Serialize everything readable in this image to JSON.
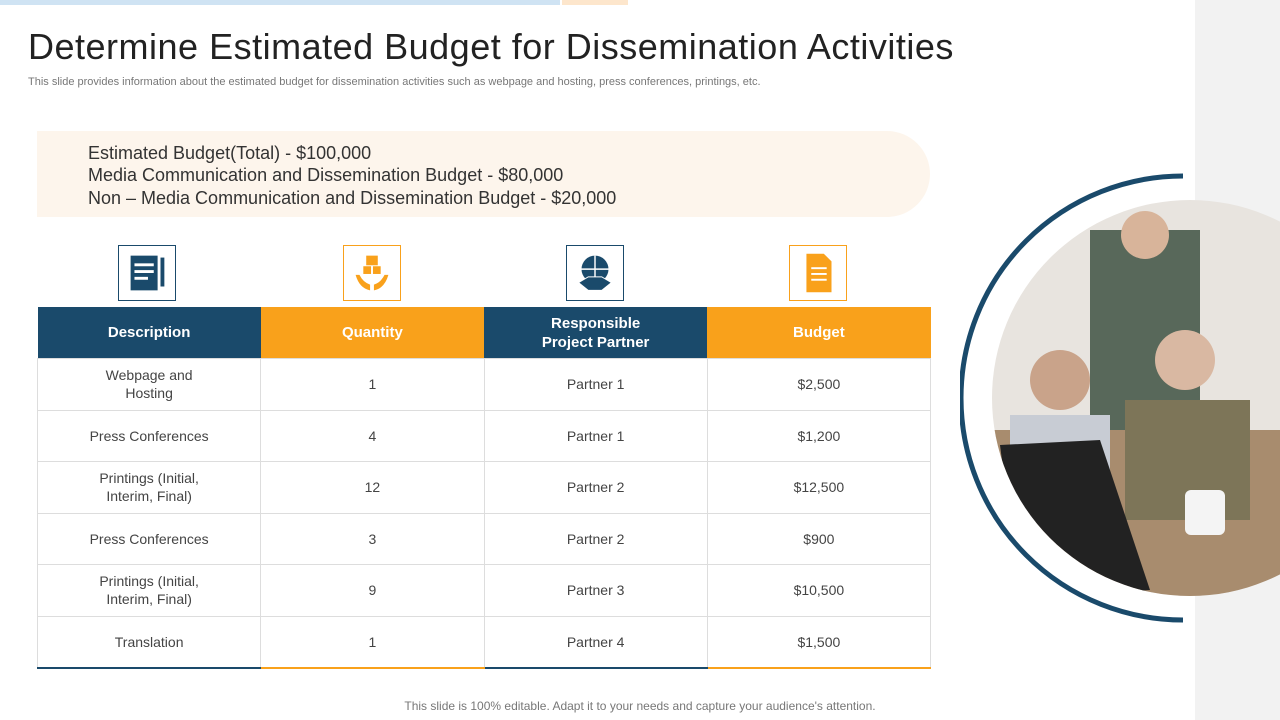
{
  "header": {
    "title": "Determine Estimated Budget for Dissemination Activities",
    "subtitle": "This slide provides information about the estimated budget for dissemination activities such as webpage and hosting, press conferences, printings, etc."
  },
  "summary": [
    "Estimated Budget(Total) - $100,000",
    "Media Communication and Dissemination Budget - $80,000",
    "Non – Media Communication and Dissemination Budget - $20,000"
  ],
  "table": {
    "columns": [
      "Description",
      "Quantity",
      "Responsible Project Partner",
      "Budget"
    ],
    "rows": [
      [
        "Webpage and Hosting",
        "1",
        "Partner 1",
        "$2,500"
      ],
      [
        "Press Conferences",
        "4",
        "Partner 1",
        "$1,200"
      ],
      [
        "Printings (Initial, Interim, Final)",
        "12",
        "Partner 2",
        "$12,500"
      ],
      [
        "Press Conferences",
        "3",
        "Partner 2",
        "$900"
      ],
      [
        "Printings (Initial, Interim, Final)",
        "9",
        "Partner 3",
        "$10,500"
      ],
      [
        "Translation",
        "1",
        "Partner 4",
        "$1,500"
      ]
    ]
  },
  "footer": "This slide is 100% editable. Adapt it to your needs and capture your audience's attention."
}
